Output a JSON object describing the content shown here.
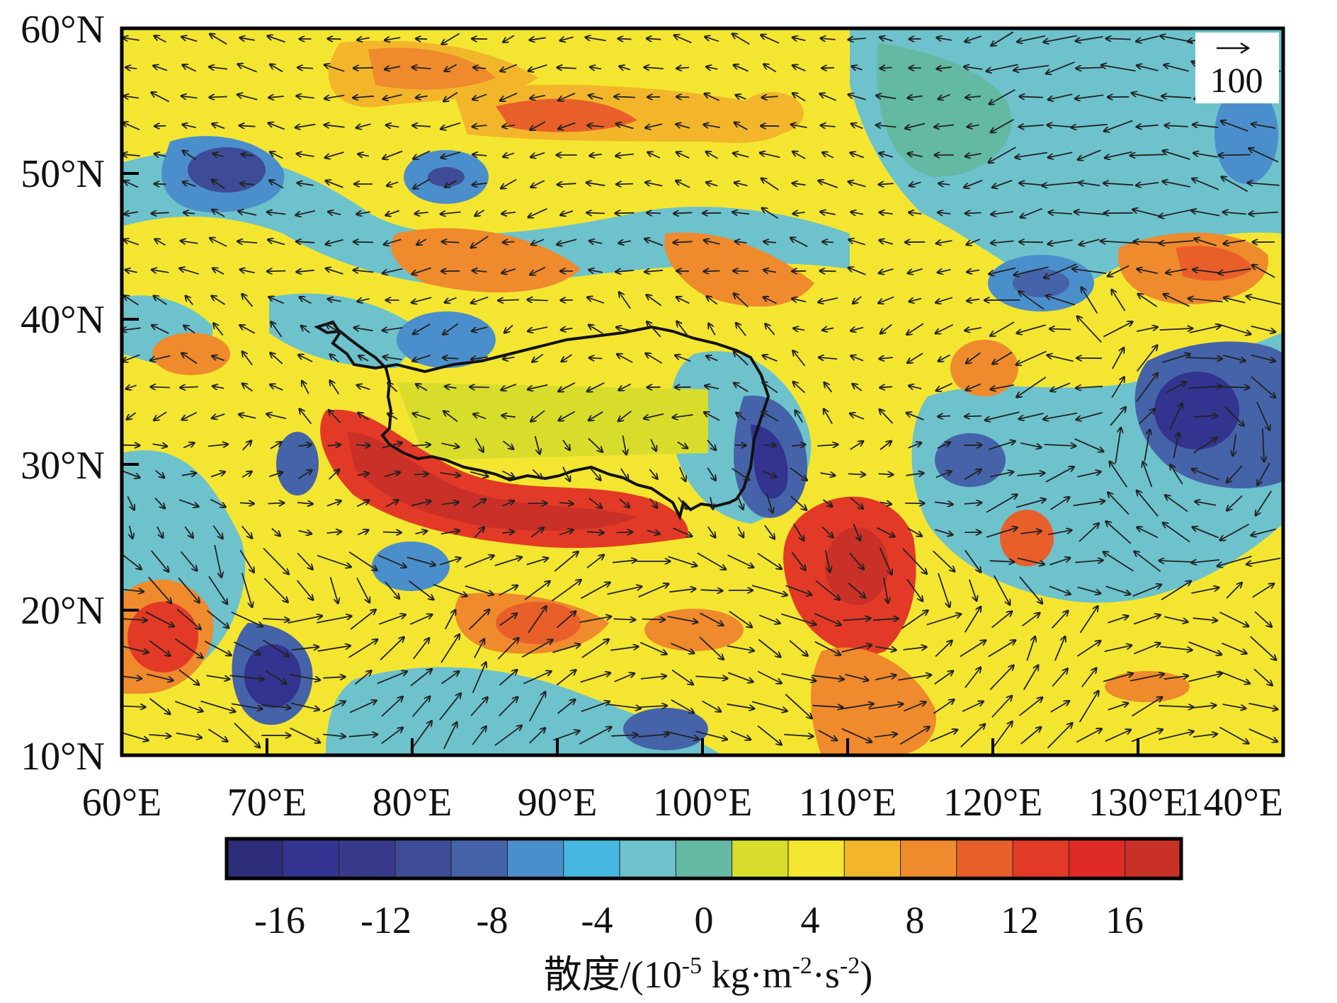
{
  "map": {
    "x_ticks": [
      "60°E",
      "70°E",
      "80°E",
      "90°E",
      "100°E",
      "110°E",
      "120°E",
      "130°E",
      "140°E"
    ],
    "y_ticks": [
      "10°N",
      "20°N",
      "30°N",
      "40°N",
      "50°N",
      "60°N"
    ],
    "lon_range": [
      60,
      140
    ],
    "lat_range": [
      10,
      60
    ],
    "reference_vector": {
      "label": "100",
      "icon": "arrow-right-icon"
    },
    "overlay": "Tibetan Plateau boundary outline (black)"
  },
  "colorbar": {
    "tick_labels": [
      "-16",
      "-12",
      "-8",
      "-4",
      "0",
      "4",
      "8",
      "12",
      "16"
    ],
    "title": "散度/(10",
    "title_sup1": "-5",
    "title_mid": " kg·m",
    "title_sup2": "-2",
    "title_mid2": "·s",
    "title_sup3": "-2",
    "title_end": ")",
    "colors": [
      "#2e2d7a",
      "#33348f",
      "#383b8c",
      "#3e4c97",
      "#4563a8",
      "#4a8fcb",
      "#46b8e0",
      "#6dc2cc",
      "#63b9a2",
      "#d8dd2b",
      "#f4e630",
      "#f3b62b",
      "#ef8a2d",
      "#e95f2a",
      "#e33a27",
      "#e02a25",
      "#c93128"
    ]
  }
}
